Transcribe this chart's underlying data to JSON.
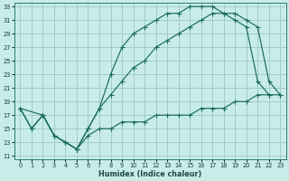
{
  "xlabel": "Humidex (Indice chaleur)",
  "bg_color": "#c8ecea",
  "grid_color": "#9ac8c5",
  "line_color": "#1a6b5a",
  "xlim": [
    -0.5,
    23.5
  ],
  "ylim": [
    10.5,
    33.5
  ],
  "xticks": [
    0,
    1,
    2,
    3,
    4,
    5,
    6,
    7,
    8,
    9,
    10,
    11,
    12,
    13,
    14,
    15,
    16,
    17,
    18,
    19,
    20,
    21,
    22,
    23
  ],
  "yticks": [
    11,
    13,
    15,
    17,
    19,
    21,
    23,
    25,
    27,
    29,
    31,
    33
  ],
  "line1_x": [
    0,
    1,
    2,
    3,
    4,
    5,
    6,
    7,
    8,
    9,
    10,
    11,
    12,
    13,
    14,
    15,
    16,
    17,
    18,
    19,
    20,
    21,
    22
  ],
  "line1_y": [
    18,
    15,
    17,
    14,
    13,
    12,
    15,
    18,
    23,
    27,
    29,
    30,
    31,
    32,
    32,
    33,
    33,
    33,
    32,
    31,
    30,
    22,
    20
  ],
  "line2_x": [
    0,
    2,
    3,
    4,
    5,
    6,
    7,
    8,
    9,
    10,
    11,
    12,
    13,
    14,
    15,
    16,
    17,
    18,
    19,
    20,
    21,
    22,
    23
  ],
  "line2_y": [
    18,
    17,
    14,
    13,
    12,
    15,
    18,
    20,
    22,
    24,
    25,
    27,
    28,
    29,
    30,
    31,
    32,
    32,
    32,
    31,
    30,
    22,
    20
  ],
  "line3_x": [
    0,
    1,
    2,
    3,
    4,
    5,
    6,
    7,
    8,
    9,
    10,
    11,
    12,
    13,
    14,
    15,
    16,
    17,
    18,
    19,
    20,
    21,
    22,
    23
  ],
  "line3_y": [
    18,
    15,
    17,
    14,
    13,
    12,
    14,
    15,
    15,
    16,
    16,
    16,
    17,
    17,
    17,
    17,
    18,
    18,
    18,
    19,
    19,
    20,
    20,
    20
  ]
}
